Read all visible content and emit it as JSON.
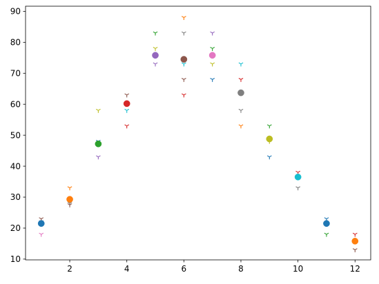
{
  "chart_data": {
    "type": "scatter",
    "title": "",
    "xlabel": "",
    "ylabel": "",
    "xlim": [
      0.45,
      12.55
    ],
    "ylim": [
      9.75,
      91.65
    ],
    "xticks": [
      2,
      4,
      6,
      8,
      10,
      12
    ],
    "yticks": [
      10,
      20,
      30,
      40,
      50,
      60,
      70,
      80,
      90
    ],
    "grid": false,
    "legend": "none",
    "palette": [
      "#1f77b4",
      "#ff7f0e",
      "#2ca02c",
      "#d62728",
      "#9467bd",
      "#8c564b",
      "#e377c2",
      "#7f7f7f",
      "#bcbd22",
      "#17becf"
    ],
    "means": [
      {
        "x": 1,
        "y": 21.5
      },
      {
        "x": 2,
        "y": 29.3
      },
      {
        "x": 3,
        "y": 47.2
      },
      {
        "x": 4,
        "y": 60.2
      },
      {
        "x": 5,
        "y": 75.8
      },
      {
        "x": 6,
        "y": 74.5
      },
      {
        "x": 7,
        "y": 75.8
      },
      {
        "x": 8,
        "y": 63.7
      },
      {
        "x": 9,
        "y": 48.8
      },
      {
        "x": 10,
        "y": 36.5
      },
      {
        "x": 11,
        "y": 21.5
      },
      {
        "x": 12,
        "y": 15.8
      }
    ],
    "points": [
      {
        "x": 1,
        "y": 23,
        "color": "#8c564b"
      },
      {
        "x": 1,
        "y": 22,
        "color": "#1f77b4"
      },
      {
        "x": 1,
        "y": 18,
        "color": "#e377c2"
      },
      {
        "x": 2,
        "y": 33,
        "color": "#ff7f0e"
      },
      {
        "x": 2,
        "y": 28,
        "color": "#7f7f7f"
      },
      {
        "x": 2,
        "y": 27.5,
        "color": "#8c564b"
      },
      {
        "x": 3,
        "y": 58,
        "color": "#bcbd22"
      },
      {
        "x": 3,
        "y": 48,
        "color": "#1f77b4"
      },
      {
        "x": 3,
        "y": 47.5,
        "color": "#7f7f7f"
      },
      {
        "x": 3,
        "y": 43,
        "color": "#9467bd"
      },
      {
        "x": 4,
        "y": 63,
        "color": "#8c564b"
      },
      {
        "x": 4,
        "y": 58,
        "color": "#17becf"
      },
      {
        "x": 4,
        "y": 53,
        "color": "#d62728"
      },
      {
        "x": 5,
        "y": 83,
        "color": "#2ca02c"
      },
      {
        "x": 5,
        "y": 78,
        "color": "#bcbd22"
      },
      {
        "x": 5,
        "y": 73,
        "color": "#9467bd"
      },
      {
        "x": 6,
        "y": 88,
        "color": "#ff7f0e"
      },
      {
        "x": 6,
        "y": 83,
        "color": "#7f7f7f"
      },
      {
        "x": 6,
        "y": 73,
        "color": "#17becf"
      },
      {
        "x": 6,
        "y": 68,
        "color": "#8c564b"
      },
      {
        "x": 6,
        "y": 63,
        "color": "#d62728"
      },
      {
        "x": 7,
        "y": 83,
        "color": "#9467bd"
      },
      {
        "x": 7,
        "y": 78,
        "color": "#2ca02c"
      },
      {
        "x": 7,
        "y": 73,
        "color": "#bcbd22"
      },
      {
        "x": 7,
        "y": 68,
        "color": "#1f77b4"
      },
      {
        "x": 8,
        "y": 73,
        "color": "#17becf"
      },
      {
        "x": 8,
        "y": 68,
        "color": "#d62728"
      },
      {
        "x": 8,
        "y": 58,
        "color": "#7f7f7f"
      },
      {
        "x": 8,
        "y": 53,
        "color": "#ff7f0e"
      },
      {
        "x": 9,
        "y": 53,
        "color": "#2ca02c"
      },
      {
        "x": 9,
        "y": 48,
        "color": "#bcbd22"
      },
      {
        "x": 9,
        "y": 43,
        "color": "#1f77b4"
      },
      {
        "x": 10,
        "y": 38,
        "color": "#d62728"
      },
      {
        "x": 10,
        "y": 33,
        "color": "#7f7f7f"
      },
      {
        "x": 11,
        "y": 23,
        "color": "#1f77b4"
      },
      {
        "x": 11,
        "y": 18,
        "color": "#2ca02c"
      },
      {
        "x": 12,
        "y": 18,
        "color": "#d62728"
      },
      {
        "x": 12,
        "y": 13,
        "color": "#8c564b"
      }
    ]
  }
}
